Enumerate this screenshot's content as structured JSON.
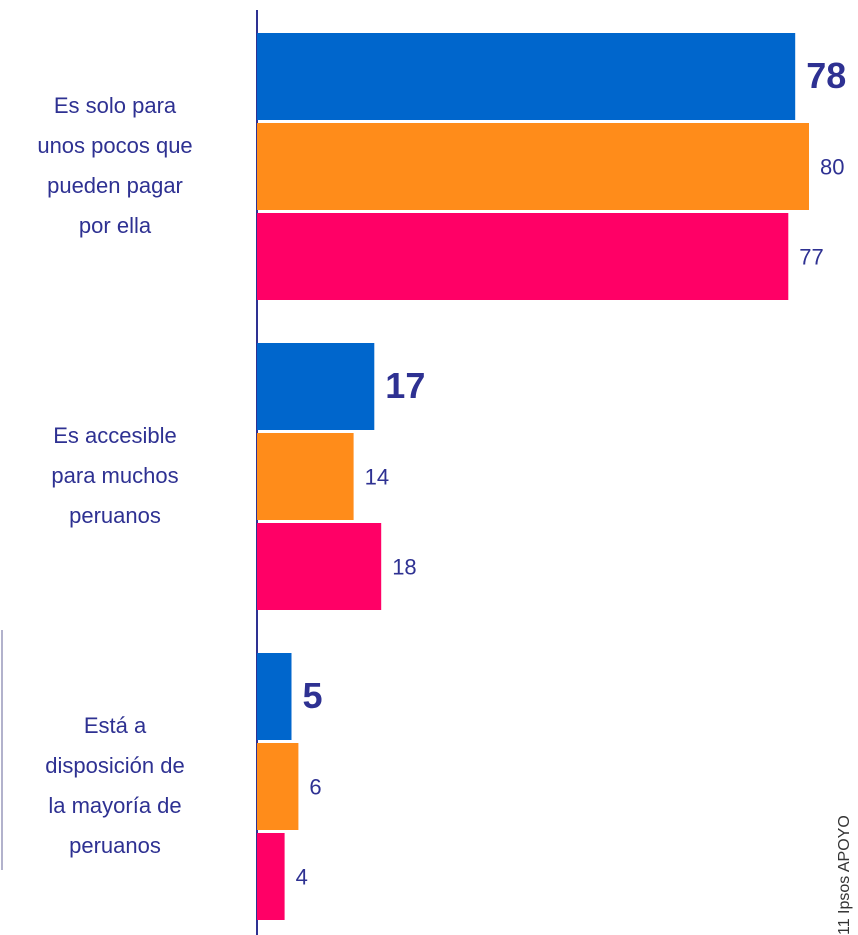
{
  "chart_data": {
    "type": "bar",
    "orientation": "horizontal",
    "categories": [
      "Es solo para\nunos pocos que\npueden pagar\npor ella",
      "Es accesible\npara muchos\nperuanos",
      "Está a\ndisposición de\nla mayoría de\nperuanos"
    ],
    "series": [
      {
        "color": "#0066cc",
        "values": [
          78,
          17,
          5
        ]
      },
      {
        "color": "#ff8c1a",
        "values": [
          80,
          14,
          6
        ]
      },
      {
        "color": "#ff0066",
        "values": [
          77,
          18,
          4
        ]
      }
    ],
    "source": "11 Ipsos APOYO"
  }
}
